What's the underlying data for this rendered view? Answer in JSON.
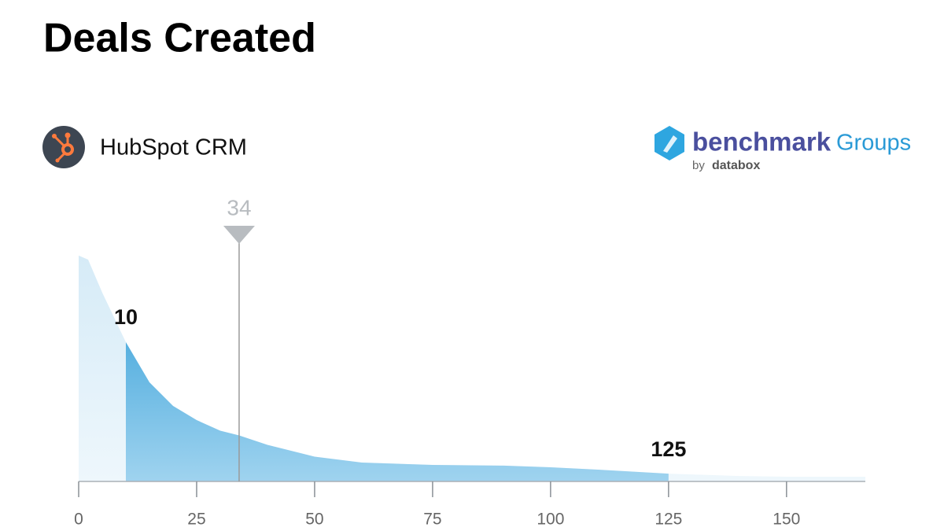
{
  "chart_data": {
    "type": "area",
    "title": "Deals Created",
    "source": "HubSpot CRM",
    "x": [
      0,
      2,
      5,
      10,
      15,
      20,
      25,
      30,
      34,
      40,
      50,
      60,
      75,
      90,
      100,
      110,
      125,
      140,
      150,
      166.7
    ],
    "values": [
      95.7,
      94,
      80,
      59,
      42,
      32,
      26,
      21.5,
      19.5,
      15.5,
      10.5,
      8,
      7,
      6.7,
      6,
      5,
      3.3,
      2.3,
      2,
      2
    ],
    "color": "#2f9fd8",
    "lower": 10,
    "upper": 125,
    "marker": 34,
    "xlim": [
      0,
      166.7
    ],
    "ylim": [
      0,
      100
    ],
    "xticks": [
      0,
      25,
      50,
      75,
      100,
      125,
      150
    ]
  },
  "logo": {
    "name": "benchmark",
    "suffix": "Groups",
    "by": "by",
    "company": "databox"
  }
}
